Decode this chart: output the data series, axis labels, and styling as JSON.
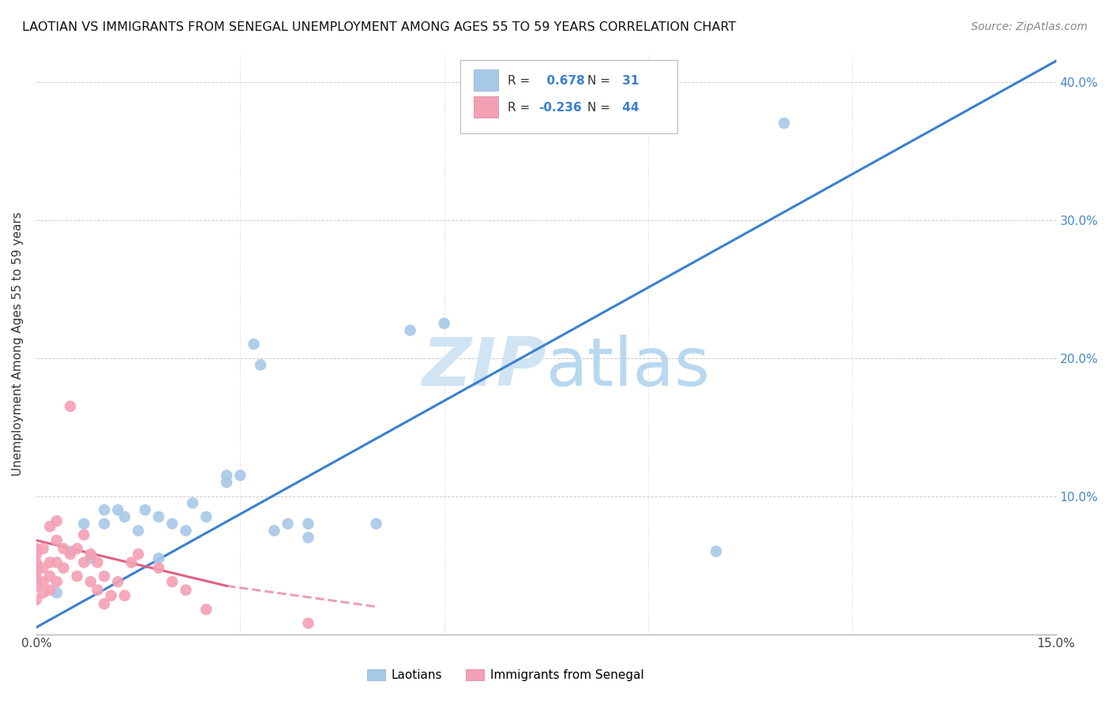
{
  "title": "LAOTIAN VS IMMIGRANTS FROM SENEGAL UNEMPLOYMENT AMONG AGES 55 TO 59 YEARS CORRELATION CHART",
  "source": "Source: ZipAtlas.com",
  "ylabel": "Unemployment Among Ages 55 to 59 years",
  "xlim": [
    0.0,
    0.15
  ],
  "ylim": [
    0.0,
    0.42
  ],
  "legend_labels": [
    "Laotians",
    "Immigrants from Senegal"
  ],
  "R_laotian": 0.678,
  "N_laotian": 31,
  "R_senegal": -0.236,
  "N_senegal": 44,
  "laotian_color": "#a8c8e8",
  "senegal_color": "#f4a0b4",
  "line_laotian_color": "#3a7fd0",
  "line_senegal_color": "#e06080",
  "watermark_color": "#d0e4f4",
  "laotian_points": [
    [
      0.003,
      0.03
    ],
    [
      0.005,
      0.06
    ],
    [
      0.007,
      0.08
    ],
    [
      0.008,
      0.055
    ],
    [
      0.01,
      0.08
    ],
    [
      0.01,
      0.09
    ],
    [
      0.012,
      0.09
    ],
    [
      0.013,
      0.085
    ],
    [
      0.015,
      0.075
    ],
    [
      0.016,
      0.09
    ],
    [
      0.018,
      0.055
    ],
    [
      0.018,
      0.085
    ],
    [
      0.02,
      0.08
    ],
    [
      0.022,
      0.075
    ],
    [
      0.023,
      0.095
    ],
    [
      0.025,
      0.085
    ],
    [
      0.028,
      0.11
    ],
    [
      0.028,
      0.115
    ],
    [
      0.03,
      0.115
    ],
    [
      0.032,
      0.21
    ],
    [
      0.033,
      0.195
    ],
    [
      0.035,
      0.075
    ],
    [
      0.037,
      0.08
    ],
    [
      0.04,
      0.07
    ],
    [
      0.04,
      0.08
    ],
    [
      0.05,
      0.08
    ],
    [
      0.055,
      0.22
    ],
    [
      0.06,
      0.225
    ],
    [
      0.065,
      0.37
    ],
    [
      0.1,
      0.06
    ],
    [
      0.11,
      0.37
    ]
  ],
  "senegal_points": [
    [
      0.0,
      0.025
    ],
    [
      0.0,
      0.035
    ],
    [
      0.0,
      0.04
    ],
    [
      0.0,
      0.045
    ],
    [
      0.0,
      0.048
    ],
    [
      0.0,
      0.052
    ],
    [
      0.0,
      0.058
    ],
    [
      0.0,
      0.062
    ],
    [
      0.001,
      0.03
    ],
    [
      0.001,
      0.038
    ],
    [
      0.001,
      0.048
    ],
    [
      0.001,
      0.062
    ],
    [
      0.002,
      0.032
    ],
    [
      0.002,
      0.042
    ],
    [
      0.002,
      0.052
    ],
    [
      0.002,
      0.078
    ],
    [
      0.003,
      0.038
    ],
    [
      0.003,
      0.052
    ],
    [
      0.003,
      0.068
    ],
    [
      0.003,
      0.082
    ],
    [
      0.004,
      0.048
    ],
    [
      0.004,
      0.062
    ],
    [
      0.005,
      0.058
    ],
    [
      0.005,
      0.165
    ],
    [
      0.006,
      0.042
    ],
    [
      0.006,
      0.062
    ],
    [
      0.007,
      0.052
    ],
    [
      0.007,
      0.072
    ],
    [
      0.008,
      0.038
    ],
    [
      0.008,
      0.058
    ],
    [
      0.009,
      0.032
    ],
    [
      0.009,
      0.052
    ],
    [
      0.01,
      0.022
    ],
    [
      0.01,
      0.042
    ],
    [
      0.011,
      0.028
    ],
    [
      0.012,
      0.038
    ],
    [
      0.013,
      0.028
    ],
    [
      0.014,
      0.052
    ],
    [
      0.015,
      0.058
    ],
    [
      0.018,
      0.048
    ],
    [
      0.02,
      0.038
    ],
    [
      0.022,
      0.032
    ],
    [
      0.025,
      0.018
    ],
    [
      0.04,
      0.008
    ]
  ],
  "laotian_line_x": [
    0.0,
    0.15
  ],
  "laotian_line_y": [
    0.005,
    0.415
  ],
  "senegal_line_x": [
    0.0,
    0.05
  ],
  "senegal_line_y": [
    0.068,
    0.02
  ]
}
